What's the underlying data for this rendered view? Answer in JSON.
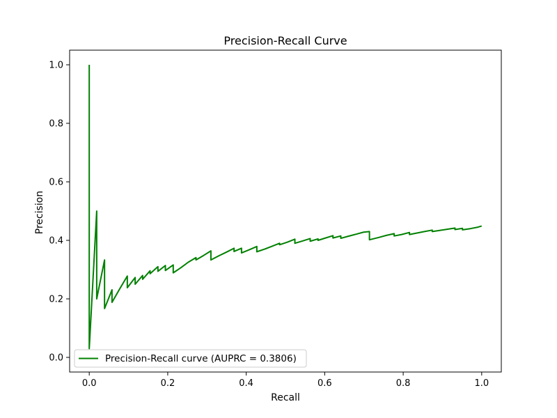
{
  "chart_data": {
    "type": "line",
    "title": "Precision-Recall Curve",
    "xlabel": "Recall",
    "ylabel": "Precision",
    "xlim": [
      -0.05,
      1.05
    ],
    "ylim": [
      -0.05,
      1.05
    ],
    "xticks": [
      "0.0",
      "0.2",
      "0.4",
      "0.6",
      "0.8",
      "1.0"
    ],
    "yticks": [
      "0.0",
      "0.2",
      "0.4",
      "0.6",
      "0.8",
      "1.0"
    ],
    "xtick_values": [
      0,
      0.2,
      0.4,
      0.6,
      0.8,
      1.0
    ],
    "ytick_values": [
      0,
      0.2,
      0.4,
      0.6,
      0.8,
      1.0
    ],
    "grid": false,
    "legend": {
      "placement": "lower-left",
      "entries": [
        "Precision-Recall curve (AUPRC = 0.3806)"
      ]
    },
    "colors": {
      "line": "#008000"
    },
    "series": [
      {
        "name": "Precision-Recall curve (AUPRC = 0.3806)",
        "x": [
          0.0,
          0.0,
          0.0,
          0.019,
          0.019,
          0.039,
          0.039,
          0.058,
          0.058,
          0.078,
          0.097,
          0.097,
          0.117,
          0.117,
          0.136,
          0.136,
          0.155,
          0.155,
          0.175,
          0.175,
          0.194,
          0.194,
          0.214,
          0.214,
          0.233,
          0.252,
          0.272,
          0.272,
          0.291,
          0.31,
          0.31,
          0.33,
          0.35,
          0.369,
          0.369,
          0.388,
          0.388,
          0.408,
          0.427,
          0.427,
          0.447,
          0.466,
          0.485,
          0.485,
          0.505,
          0.524,
          0.524,
          0.544,
          0.563,
          0.563,
          0.583,
          0.583,
          0.602,
          0.621,
          0.621,
          0.641,
          0.641,
          0.66,
          0.68,
          0.699,
          0.714,
          0.714,
          0.738,
          0.757,
          0.777,
          0.777,
          0.796,
          0.816,
          0.816,
          0.835,
          0.854,
          0.874,
          0.874,
          0.893,
          0.913,
          0.932,
          0.932,
          0.951,
          0.951,
          0.971,
          0.99,
          1.0
        ],
        "y": [
          1.0,
          0.03,
          0.03,
          0.5,
          0.2,
          0.333,
          0.167,
          0.231,
          0.188,
          0.235,
          0.278,
          0.238,
          0.273,
          0.25,
          0.28,
          0.267,
          0.296,
          0.286,
          0.31,
          0.294,
          0.314,
          0.297,
          0.316,
          0.289,
          0.306,
          0.325,
          0.341,
          0.333,
          0.348,
          0.364,
          0.333,
          0.347,
          0.36,
          0.373,
          0.362,
          0.373,
          0.357,
          0.368,
          0.379,
          0.361,
          0.37,
          0.38,
          0.39,
          0.385,
          0.394,
          0.404,
          0.39,
          0.398,
          0.406,
          0.397,
          0.405,
          0.4,
          0.408,
          0.416,
          0.408,
          0.415,
          0.407,
          0.414,
          0.421,
          0.428,
          0.43,
          0.402,
          0.41,
          0.417,
          0.423,
          0.415,
          0.42,
          0.427,
          0.42,
          0.425,
          0.43,
          0.435,
          0.43,
          0.434,
          0.438,
          0.442,
          0.437,
          0.441,
          0.436,
          0.44,
          0.445,
          0.449
        ]
      }
    ]
  }
}
